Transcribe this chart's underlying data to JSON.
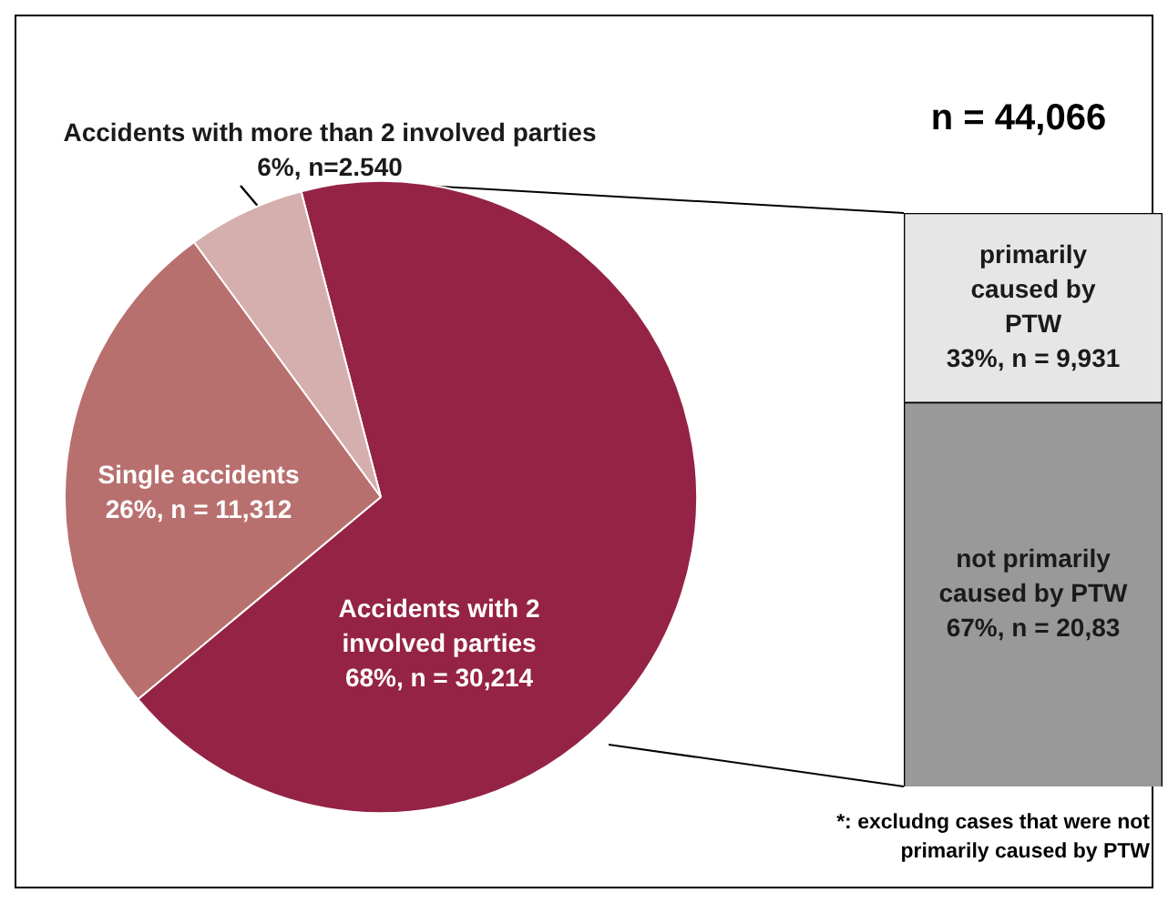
{
  "chart_data": [
    {
      "type": "pie",
      "categories": [
        "Accidents with 2 involved parties",
        "Single accidents",
        "Accidents with more than 2 involved parties"
      ],
      "values": [
        68,
        26,
        6
      ],
      "colors": [
        "#952345",
        "#b8706f",
        "#d5aeae"
      ],
      "value_labels": [
        "68%, n = 30,214",
        "26%, n = 11,312",
        "6%, n=2.540"
      ]
    },
    {
      "type": "bar",
      "title": "n = 44,066",
      "stacked": true,
      "categories": [
        null
      ],
      "series": [
        {
          "name": "not primarily caused by PTW",
          "color": "#999999",
          "values": [
            67
          ],
          "value_labels": [
            "67%, n = 20,83"
          ]
        },
        {
          "name": "primarily caused by PTW",
          "color": "#e6e6e6",
          "values": [
            33
          ],
          "value_labels": [
            "33%, n = 9,931"
          ]
        }
      ],
      "annotations": [
        "*: excludng cases that were not primarily caused by PTW"
      ]
    }
  ]
}
